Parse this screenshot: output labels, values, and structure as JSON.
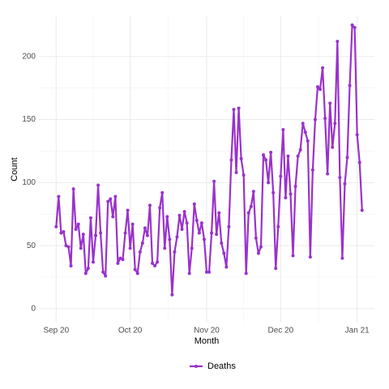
{
  "chart_data": {
    "type": "line",
    "x_label": "Month",
    "y_label": "Count",
    "series": [
      {
        "name": "Deaths",
        "color": "#9932cc",
        "values": [
          65,
          89,
          60,
          61,
          50,
          49,
          34,
          95,
          63,
          67,
          48,
          59,
          28,
          32,
          72,
          37,
          58,
          98,
          60,
          29,
          26,
          85,
          87,
          73,
          89,
          36,
          40,
          39,
          60,
          78,
          48,
          67,
          31,
          28,
          45,
          52,
          64,
          58,
          82,
          36,
          34,
          37,
          80,
          92,
          48,
          73,
          55,
          11,
          45,
          57,
          74,
          63,
          77,
          68,
          28,
          48,
          83,
          70,
          60,
          68,
          55,
          29,
          29,
          60,
          101,
          59,
          76,
          52,
          44,
          33,
          65,
          118,
          158,
          108,
          159,
          119,
          106,
          28,
          76,
          81,
          93,
          56,
          44,
          49,
          122,
          118,
          100,
          124,
          92,
          32,
          65,
          105,
          142,
          88,
          121,
          91,
          42,
          97,
          121,
          126,
          147,
          140,
          133,
          41,
          110,
          150,
          176,
          174,
          191,
          151,
          107,
          163,
          128,
          147,
          212,
          104,
          40,
          99,
          120,
          177,
          225,
          223,
          138,
          116,
          78
        ]
      }
    ],
    "xlim": [
      -7,
      129
    ],
    "xticks": [
      {
        "value": 0,
        "label": "Sep 20"
      },
      {
        "value": 30,
        "label": "Oct 20"
      },
      {
        "value": 61,
        "label": "Nov 20"
      },
      {
        "value": 91,
        "label": "Dec 20"
      },
      {
        "value": 122,
        "label": "Jan 21"
      }
    ],
    "ylim": [
      -11,
      232
    ],
    "yticks": [
      0,
      50,
      100,
      150,
      200
    ],
    "grid": true,
    "legend": "bottom"
  }
}
